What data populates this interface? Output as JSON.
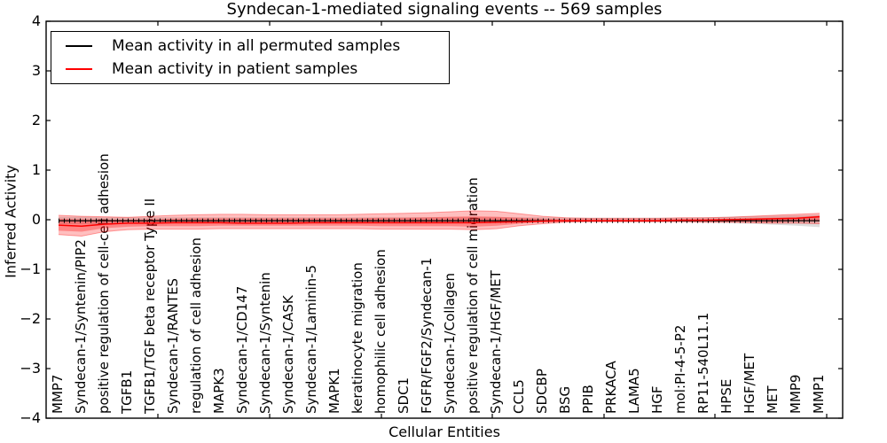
{
  "title": "Syndecan-1-mediated signaling events -- 569 samples",
  "legend": {
    "position": "upper left",
    "items": [
      {
        "label": "Mean activity in all permuted samples",
        "color": "#000000"
      },
      {
        "label": "Mean activity in patient samples",
        "color": "#ff0000"
      }
    ]
  },
  "colors": {
    "patient": "#ff0000",
    "permuted": "#000000",
    "band_red": "#ff0000",
    "band_gray": "#999999",
    "frame": "#000000",
    "background": "#ffffff"
  },
  "chart_data": {
    "type": "line",
    "title": "Syndecan-1-mediated signaling events -- 569 samples",
    "xlabel": "Cellular Entities",
    "ylabel": "Inferred Activity",
    "ylim": [
      -4,
      4
    ],
    "yticks": [
      4,
      3,
      2,
      1,
      0,
      -1,
      -2,
      -3,
      -4
    ],
    "ytick_labels": [
      "4",
      "3",
      "2",
      "1",
      "0",
      "−1",
      "−2",
      "−3",
      "−4"
    ],
    "grid": false,
    "legend_position": "upper left",
    "categories": [
      "MMP7",
      "Syndecan-1/Syntenin/PIP2",
      "positive regulation of cell-cell adhesion",
      "TGFB1",
      "TGFB1/TGF beta receptor Type II",
      "Syndecan-1/RANTES",
      "regulation of cell adhesion",
      "MAPK3",
      "Syndecan-1/CD147",
      "Syndecan-1/Syntenin",
      "Syndecan-1/CASK",
      "Syndecan-1/Laminin-5",
      "MAPK1",
      "keratinocyte migration",
      "homophilic cell adhesion",
      "SDC1",
      "FGFR/FGF2/Syndecan-1",
      "Syndecan-1/Collagen",
      "positive regulation of cell migration",
      "Syndecan-1/HGF/MET",
      "CCL5",
      "SDCBP",
      "BSG",
      "PPIB",
      "PRKACA",
      "LAMA5",
      "HGF",
      "mol:PI-4-5-P2",
      "RP11-540L11.1",
      "HPSE",
      "HGF/MET",
      "MET",
      "MMP9",
      "MMP1"
    ],
    "series": [
      {
        "name": "Mean activity in all permuted samples",
        "color": "#000000",
        "marker": "vertical-tick",
        "values": [
          -0.02,
          -0.02,
          -0.02,
          -0.02,
          -0.02,
          -0.02,
          -0.02,
          -0.02,
          -0.02,
          -0.02,
          -0.02,
          -0.02,
          -0.02,
          -0.02,
          -0.02,
          -0.02,
          -0.02,
          -0.02,
          -0.02,
          -0.02,
          -0.02,
          -0.02,
          -0.02,
          -0.02,
          -0.02,
          -0.02,
          -0.02,
          -0.02,
          -0.02,
          -0.02,
          -0.02,
          -0.02,
          -0.02,
          -0.02
        ]
      },
      {
        "name": "Mean activity in patient samples",
        "color": "#ff0000",
        "marker": "none",
        "values": [
          -0.11,
          -0.13,
          -0.09,
          -0.07,
          -0.07,
          -0.06,
          -0.06,
          -0.06,
          -0.07,
          -0.07,
          -0.07,
          -0.06,
          -0.06,
          -0.06,
          -0.06,
          -0.06,
          -0.06,
          -0.06,
          -0.06,
          -0.05,
          -0.04,
          -0.03,
          -0.02,
          -0.02,
          -0.02,
          -0.02,
          -0.02,
          -0.01,
          -0.01,
          0.0,
          0.01,
          0.02,
          0.03,
          0.06
        ]
      }
    ],
    "bands": [
      {
        "name": "permuted-samples-spread",
        "color": "#999999",
        "alpha": 0.32,
        "upper": [
          0.06,
          0.06,
          0.05,
          0.05,
          0.05,
          0.05,
          0.05,
          0.05,
          0.05,
          0.05,
          0.05,
          0.05,
          0.05,
          0.05,
          0.05,
          0.05,
          0.05,
          0.05,
          0.05,
          0.05,
          0.05,
          0.05,
          0.04,
          0.04,
          0.04,
          0.04,
          0.04,
          0.04,
          0.05,
          0.06,
          0.07,
          0.08,
          0.09,
          0.1
        ],
        "lower": [
          -0.09,
          -0.09,
          -0.08,
          -0.07,
          -0.07,
          -0.06,
          -0.06,
          -0.06,
          -0.06,
          -0.06,
          -0.06,
          -0.06,
          -0.06,
          -0.06,
          -0.06,
          -0.06,
          -0.06,
          -0.06,
          -0.06,
          -0.06,
          -0.06,
          -0.05,
          -0.05,
          -0.05,
          -0.05,
          -0.05,
          -0.05,
          -0.05,
          -0.06,
          -0.07,
          -0.08,
          -0.1,
          -0.12,
          -0.15
        ]
      },
      {
        "name": "patient-samples-spread-outer",
        "color": "#ff0000",
        "alpha": 0.25,
        "upper": [
          0.09,
          0.07,
          0.06,
          0.05,
          0.07,
          0.09,
          0.1,
          0.11,
          0.11,
          0.1,
          0.1,
          0.1,
          0.1,
          0.11,
          0.12,
          0.13,
          0.14,
          0.16,
          0.18,
          0.17,
          0.12,
          0.07,
          0.04,
          0.03,
          0.03,
          0.03,
          0.03,
          0.04,
          0.04,
          0.05,
          0.07,
          0.09,
          0.11,
          0.13
        ],
        "lower": [
          -0.3,
          -0.33,
          -0.24,
          -0.2,
          -0.19,
          -0.19,
          -0.19,
          -0.18,
          -0.18,
          -0.18,
          -0.18,
          -0.18,
          -0.18,
          -0.18,
          -0.19,
          -0.19,
          -0.19,
          -0.19,
          -0.2,
          -0.18,
          -0.12,
          -0.08,
          -0.05,
          -0.04,
          -0.04,
          -0.04,
          -0.04,
          -0.04,
          -0.05,
          -0.05,
          -0.06,
          -0.07,
          -0.07,
          -0.08
        ]
      },
      {
        "name": "patient-samples-spread-inner",
        "color": "#ff0000",
        "alpha": 0.3,
        "upper": [
          0.02,
          0.01,
          0.0,
          0.0,
          0.01,
          0.02,
          0.03,
          0.03,
          0.03,
          0.03,
          0.03,
          0.03,
          0.03,
          0.03,
          0.04,
          0.04,
          0.05,
          0.06,
          0.07,
          0.06,
          0.04,
          0.02,
          0.01,
          0.01,
          0.01,
          0.01,
          0.01,
          0.01,
          0.01,
          0.02,
          0.03,
          0.04,
          0.05,
          0.08
        ],
        "lower": [
          -0.22,
          -0.24,
          -0.17,
          -0.14,
          -0.13,
          -0.13,
          -0.13,
          -0.12,
          -0.12,
          -0.12,
          -0.12,
          -0.12,
          -0.12,
          -0.12,
          -0.13,
          -0.13,
          -0.13,
          -0.13,
          -0.14,
          -0.12,
          -0.08,
          -0.05,
          -0.04,
          -0.03,
          -0.03,
          -0.03,
          -0.03,
          -0.03,
          -0.03,
          -0.04,
          -0.04,
          -0.05,
          -0.03,
          -0.02
        ]
      }
    ]
  }
}
